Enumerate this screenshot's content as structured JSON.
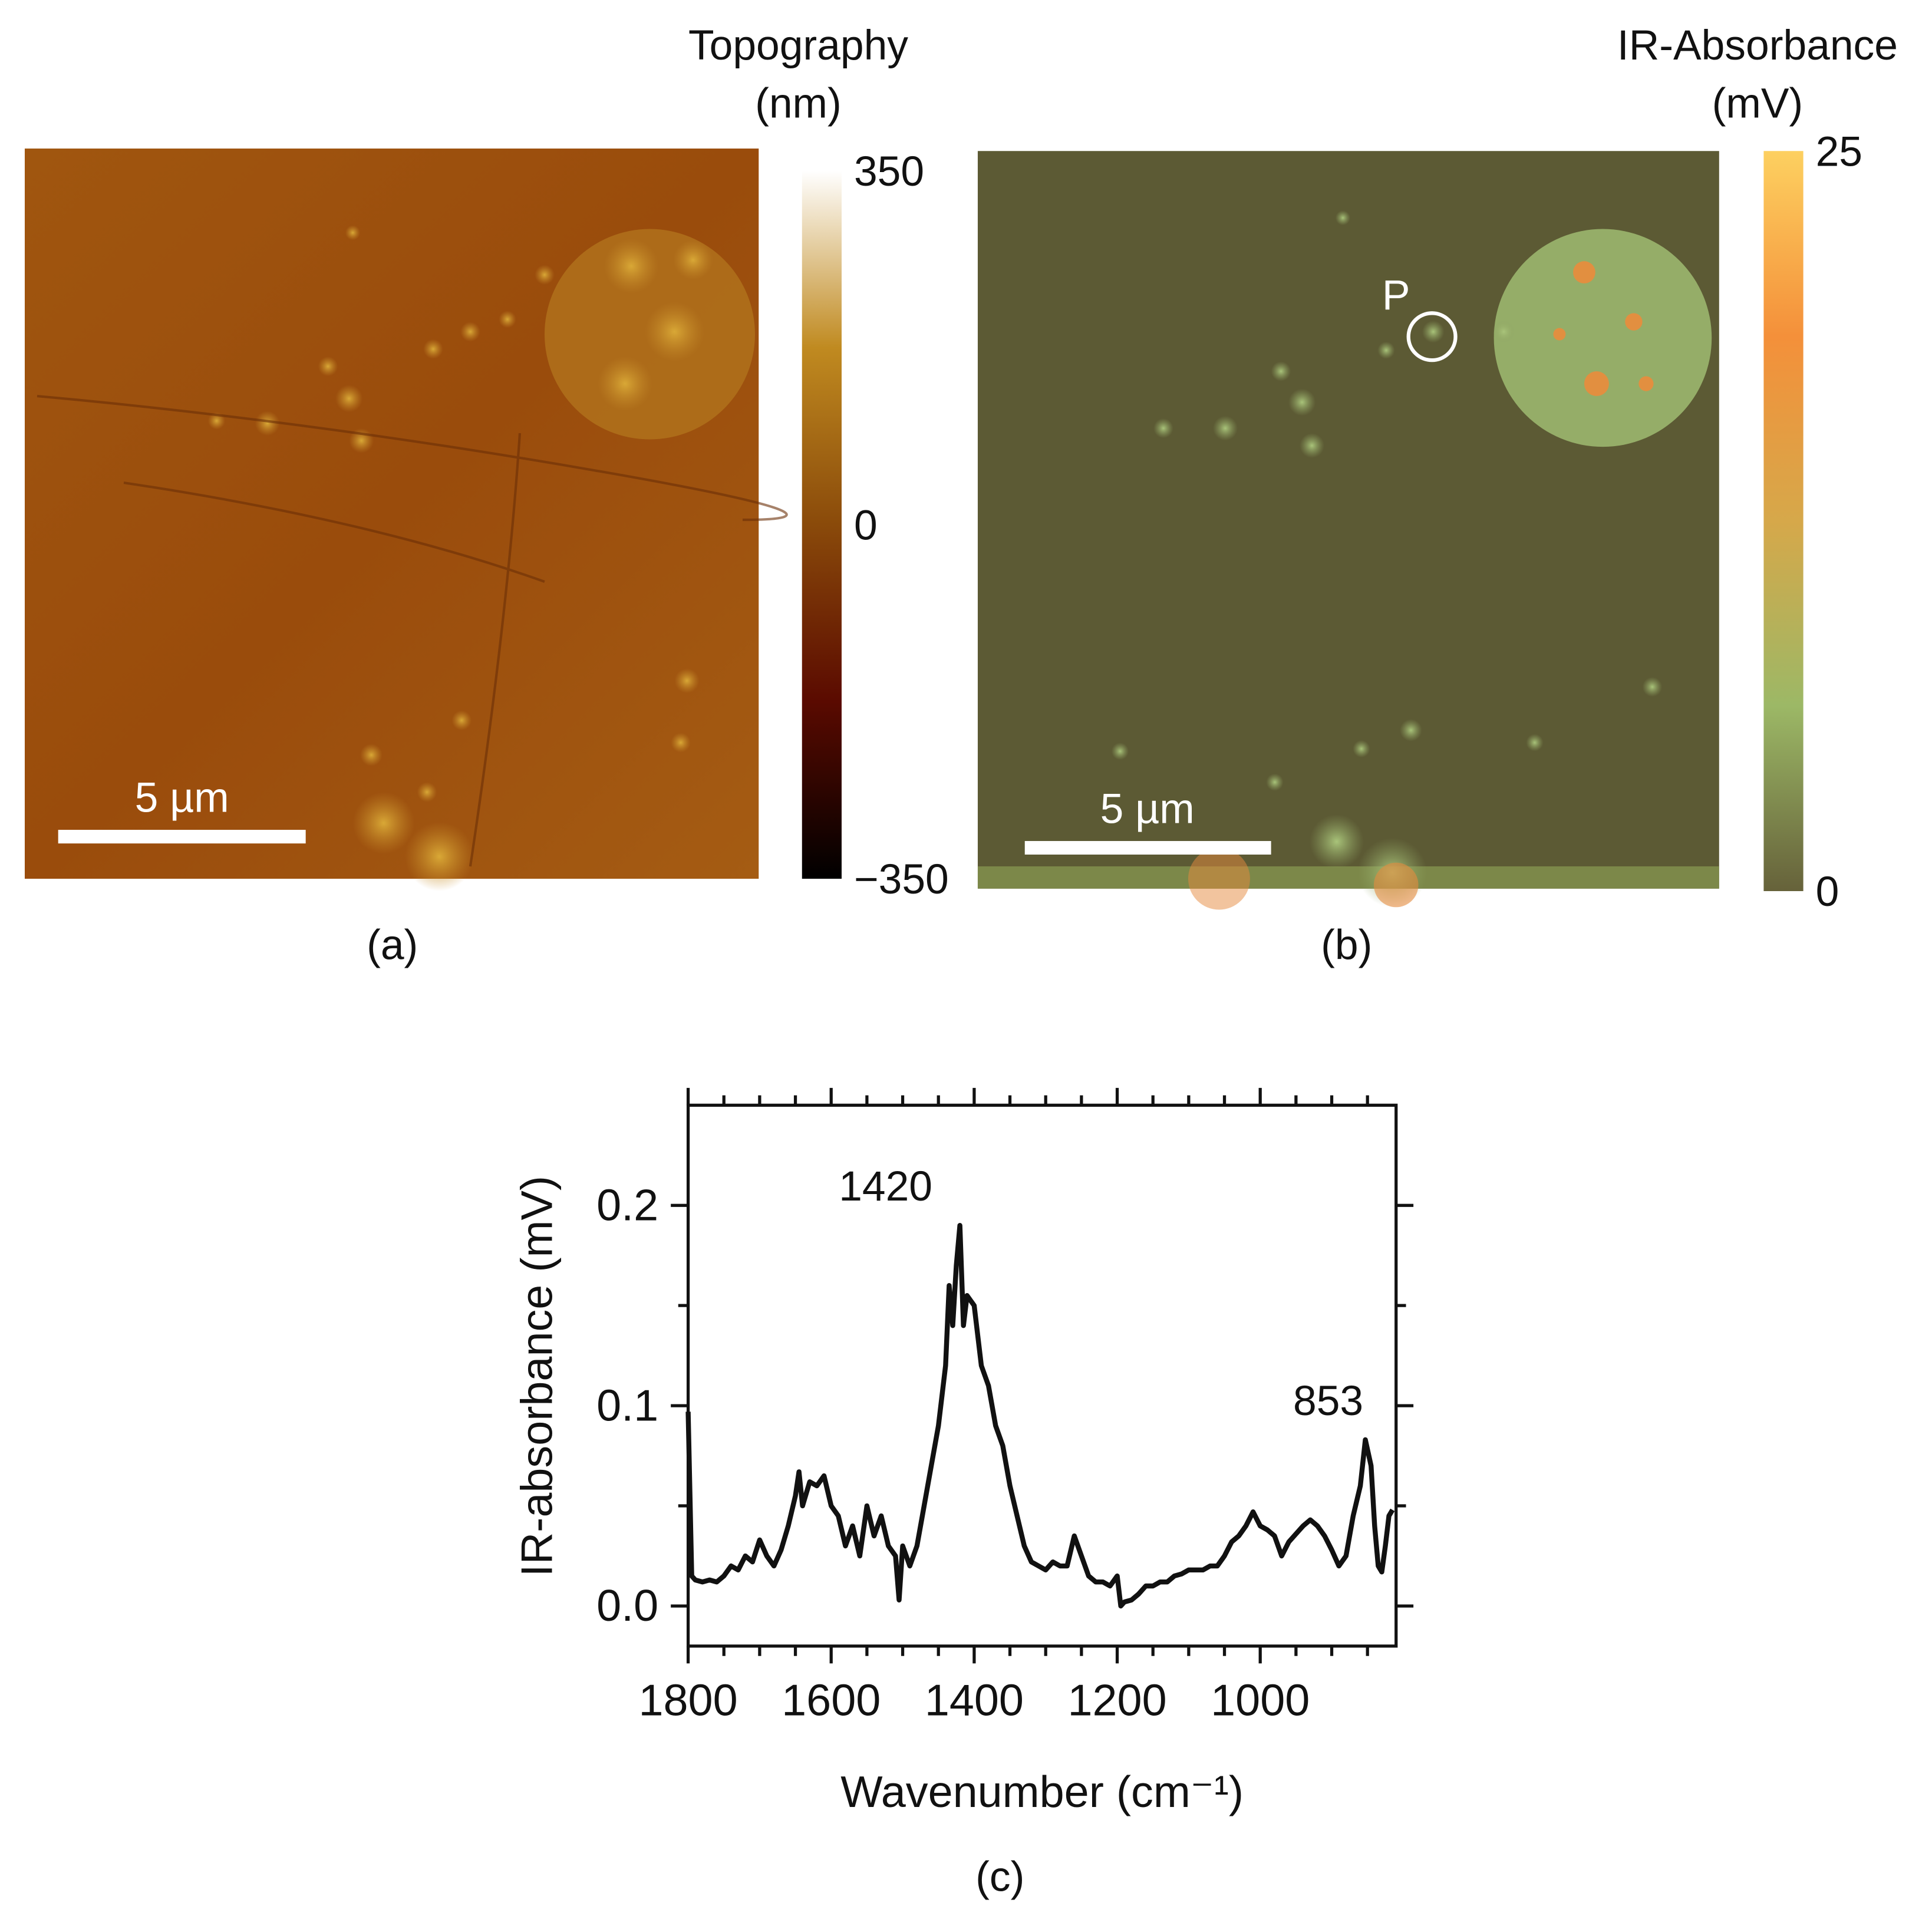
{
  "panels": [
    {
      "label": "(a)",
      "scale_bar": "5 µm",
      "colorbar": {
        "title": "Topography",
        "unit": "(nm)",
        "clim": [
          -350,
          350
        ],
        "colors": [
          "#000000",
          "#5a0a00",
          "#8a4a0a",
          "#c08a20",
          "#ffffff"
        ],
        "ticks": [
          {
            "value": 350,
            "label": "350"
          },
          {
            "value": 0,
            "label": "0"
          },
          {
            "value": -350,
            "label": "−350"
          }
        ]
      }
    },
    {
      "label": "(b)",
      "scale_bar": "5 µm",
      "marker": "P",
      "colorbar": {
        "title": "IR-Absorbance",
        "unit": "(mV)",
        "clim": [
          0,
          25
        ],
        "colors": [
          "#66623a",
          "#9cb866",
          "#d6a84a",
          "#f4903a",
          "#fdd060"
        ],
        "ticks": [
          25,
          0
        ]
      }
    }
  ],
  "chart_data": {
    "type": "line",
    "label": "(c)",
    "x_label": "Wavenumber (cm⁻¹)",
    "y_label": "IR-absorbance (mV)",
    "xlim": [
      1800,
      810
    ],
    "ylim": [
      -0.02,
      0.25
    ],
    "xticks": [
      1800,
      1600,
      1400,
      1200,
      1000
    ],
    "xticks_minor": [
      1750,
      1700,
      1650,
      1550,
      1500,
      1450,
      1350,
      1300,
      1250,
      1150,
      1100,
      1050,
      950,
      900,
      850
    ],
    "yticks": [
      {
        "value": 0,
        "label": "0.0"
      },
      0.1,
      0.2
    ],
    "yticks_minor": [
      0.05,
      0.15
    ],
    "color": "#111111",
    "annotations": [
      {
        "text": "1420",
        "x": 1420
      },
      {
        "text": "853",
        "x": 853
      }
    ],
    "x": [
      1800,
      1795,
      1790,
      1780,
      1770,
      1760,
      1750,
      1740,
      1730,
      1720,
      1710,
      1700,
      1690,
      1680,
      1670,
      1660,
      1650,
      1645,
      1640,
      1630,
      1620,
      1610,
      1600,
      1590,
      1580,
      1570,
      1560,
      1550,
      1540,
      1530,
      1520,
      1510,
      1505,
      1500,
      1490,
      1480,
      1470,
      1460,
      1450,
      1440,
      1435,
      1430,
      1425,
      1420,
      1415,
      1410,
      1400,
      1390,
      1380,
      1370,
      1360,
      1350,
      1340,
      1330,
      1320,
      1310,
      1300,
      1290,
      1280,
      1270,
      1260,
      1250,
      1240,
      1230,
      1220,
      1210,
      1200,
      1195,
      1190,
      1180,
      1170,
      1160,
      1150,
      1140,
      1130,
      1120,
      1110,
      1100,
      1090,
      1080,
      1070,
      1060,
      1050,
      1040,
      1030,
      1020,
      1010,
      1000,
      990,
      980,
      970,
      960,
      950,
      940,
      930,
      920,
      910,
      900,
      890,
      880,
      870,
      860,
      853,
      845,
      840,
      835,
      830,
      825,
      820,
      815
    ],
    "values": [
      0.097,
      0.015,
      0.013,
      0.012,
      0.013,
      0.012,
      0.015,
      0.02,
      0.018,
      0.025,
      0.022,
      0.033,
      0.025,
      0.02,
      0.028,
      0.04,
      0.055,
      0.067,
      0.05,
      0.062,
      0.06,
      0.065,
      0.05,
      0.045,
      0.03,
      0.04,
      0.025,
      0.05,
      0.035,
      0.045,
      0.03,
      0.025,
      0.003,
      0.03,
      0.02,
      0.03,
      0.05,
      0.07,
      0.09,
      0.12,
      0.16,
      0.14,
      0.17,
      0.19,
      0.14,
      0.155,
      0.15,
      0.12,
      0.11,
      0.09,
      0.08,
      0.06,
      0.045,
      0.03,
      0.022,
      0.02,
      0.018,
      0.022,
      0.02,
      0.02,
      0.035,
      0.025,
      0.015,
      0.012,
      0.012,
      0.01,
      0.015,
      0.0,
      0.002,
      0.003,
      0.006,
      0.01,
      0.01,
      0.012,
      0.012,
      0.015,
      0.016,
      0.018,
      0.018,
      0.018,
      0.02,
      0.02,
      0.025,
      0.032,
      0.035,
      0.04,
      0.047,
      0.04,
      0.038,
      0.035,
      0.025,
      0.032,
      0.036,
      0.04,
      0.043,
      0.04,
      0.035,
      0.028,
      0.02,
      0.025,
      0.045,
      0.06,
      0.083,
      0.07,
      0.04,
      0.02,
      0.017,
      0.03,
      0.045,
      0.048
    ]
  }
}
